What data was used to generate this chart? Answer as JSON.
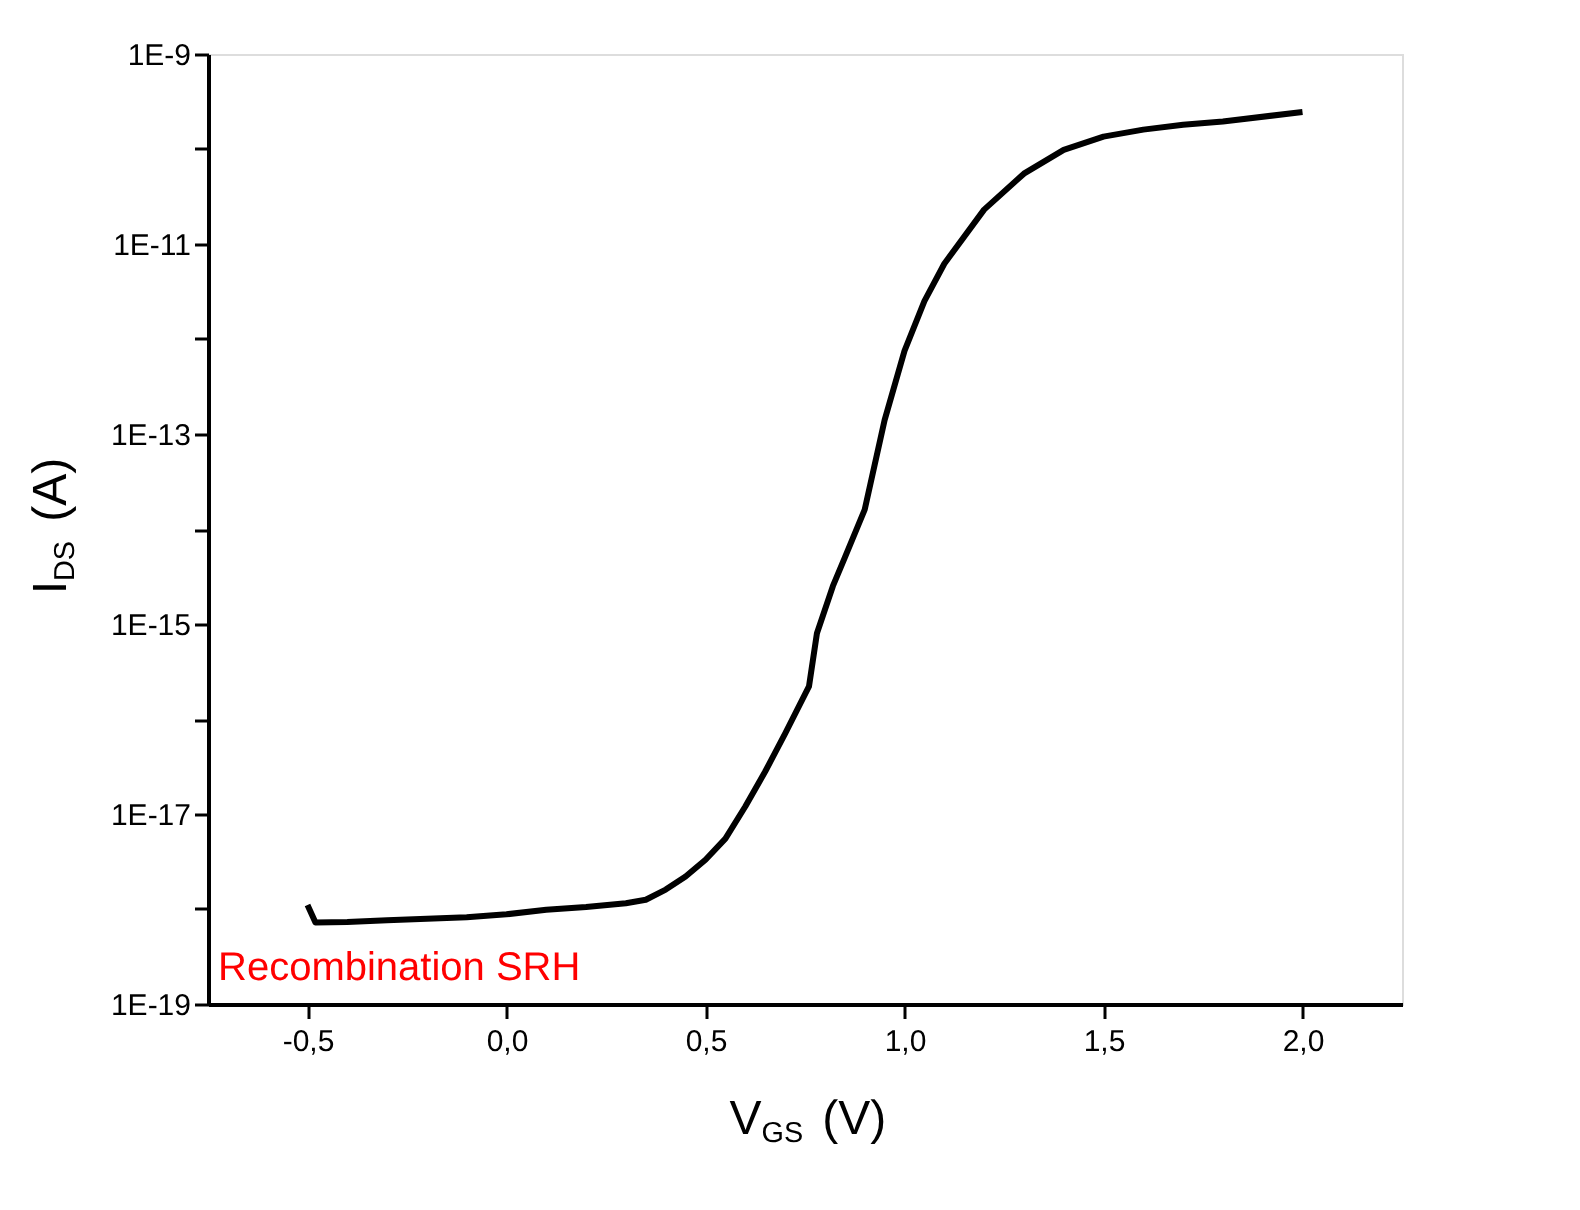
{
  "chart_data": {
    "type": "line",
    "xlabel": "V$_{GS}$ (V)",
    "ylabel": "I$_{DS}$ (A)",
    "log": "y",
    "x": [
      -0.5,
      -0.48,
      -0.4,
      -0.3,
      -0.2,
      -0.1,
      0.0,
      0.1,
      0.2,
      0.3,
      0.35,
      0.4,
      0.45,
      0.5,
      0.55,
      0.6,
      0.65,
      0.7,
      0.76,
      0.78,
      0.82,
      0.85,
      0.9,
      0.95,
      1.0,
      1.05,
      1.1,
      1.2,
      1.3,
      1.4,
      1.5,
      1.6,
      1.7,
      1.8,
      2.0
    ],
    "series": [
      {
        "color": "#000000",
        "values": [
          1.1e-18,
          7.2e-19,
          7.3e-19,
          7.6e-19,
          7.9e-19,
          8.2e-19,
          8.8e-19,
          9.8e-19,
          1.05e-18,
          1.15e-18,
          1.25e-18,
          1.6e-18,
          2.2e-18,
          3.3e-18,
          5.5e-18,
          1.2e-17,
          2.8e-17,
          7e-17,
          2.2e-16,
          8e-16,
          2.5e-15,
          5e-15,
          1.6e-14,
          1.4e-13,
          7.5e-13,
          2.5e-12,
          6.2e-12,
          2.3e-11,
          5.5e-11,
          9.8e-11,
          1.35e-10,
          1.6e-10,
          1.8e-10,
          1.95e-10,
          2.45e-10
        ]
      }
    ],
    "xlim": [
      -0.75,
      2.25
    ],
    "xticks": [
      {
        "value": -0.5,
        "label": "-0,5"
      },
      {
        "value": 0.0,
        "label": "0,0"
      },
      {
        "value": 0.5,
        "label": "0,5"
      },
      {
        "value": 1.0,
        "label": "1,0"
      },
      {
        "value": 1.5,
        "label": "1,5"
      },
      {
        "value": 2.0,
        "label": "2,0"
      }
    ],
    "ylim": [
      1e-19,
      1e-09
    ],
    "yticks": [
      {
        "value": 1e-19,
        "label": "1E-19"
      },
      {
        "value": 1e-18,
        "label": null
      },
      {
        "value": 1e-17,
        "label": "1E-17"
      },
      {
        "value": 1e-16,
        "label": null
      },
      {
        "value": 1e-15,
        "label": "1E-15"
      },
      {
        "value": 1e-14,
        "label": null
      },
      {
        "value": 1e-13,
        "label": "1E-13"
      },
      {
        "value": 1e-12,
        "label": null
      },
      {
        "value": 1e-11,
        "label": "1E-11"
      },
      {
        "value": 1e-10,
        "label": null
      },
      {
        "value": 1e-09,
        "label": "1E-9"
      }
    ],
    "annotations": [
      "Recombination SRH"
    ],
    "grid": false,
    "legend": false,
    "marker": "none",
    "line_style": "solid"
  }
}
